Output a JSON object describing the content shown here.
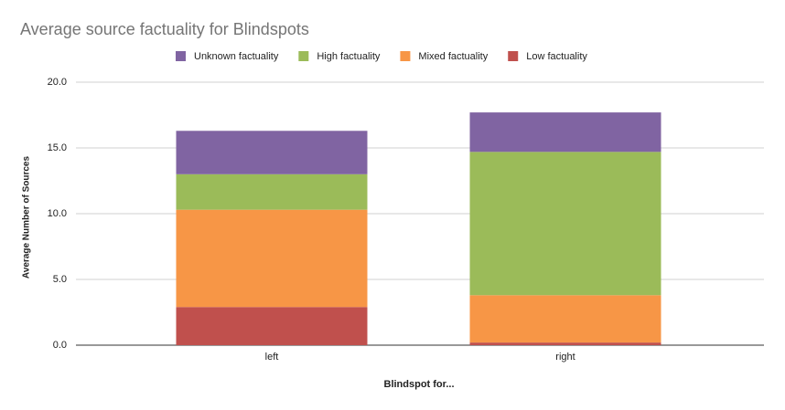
{
  "chart_data": {
    "type": "stacked-bar",
    "title": "Average source factuality for Blindspots",
    "x_label": "Blindspot for...",
    "y_label": "Average Number of Sources",
    "categories": [
      "left",
      "right"
    ],
    "series": [
      {
        "name": "Unknown factuality",
        "color": "#8064a2",
        "values": [
          3.3,
          3.0
        ]
      },
      {
        "name": "High factuality",
        "color": "#9bbb59",
        "values": [
          2.7,
          10.9
        ]
      },
      {
        "name": "Mixed factuality",
        "color": "#f79646",
        "values": [
          7.4,
          3.6
        ]
      },
      {
        "name": "Low factuality",
        "color": "#c0504d",
        "values": [
          2.9,
          0.2
        ]
      }
    ],
    "ylim": [
      0,
      20
    ],
    "yticks": [
      {
        "value": 0,
        "label": "0.0"
      },
      {
        "value": 5,
        "label": "5.0"
      },
      {
        "value": 10,
        "label": "10.0"
      },
      {
        "value": 15,
        "label": "15.0"
      },
      {
        "value": 20,
        "label": "20.0"
      }
    ],
    "grid": true,
    "legend": "top"
  }
}
